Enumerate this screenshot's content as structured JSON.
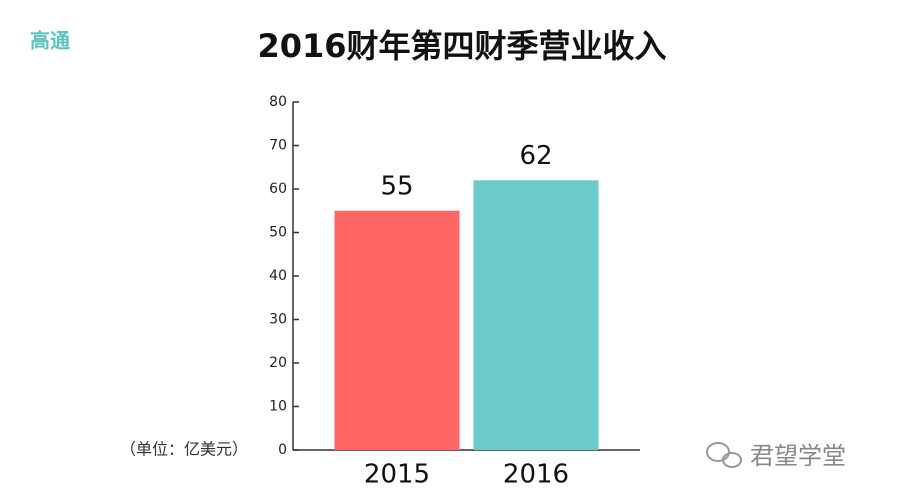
{
  "chart_data": {
    "type": "bar",
    "title": "2016财年第四财季营业收入",
    "brand": "高通",
    "unit_label": "（单位：亿美元）",
    "watermark": "君望学堂",
    "categories": [
      "2015",
      "2016"
    ],
    "values": [
      55,
      62
    ],
    "colors": [
      "#ff6666",
      "#6ccbcb"
    ],
    "ylim": [
      0,
      80
    ],
    "yticks": [
      0,
      10,
      20,
      30,
      40,
      50,
      60,
      70,
      80
    ],
    "grid": false
  }
}
